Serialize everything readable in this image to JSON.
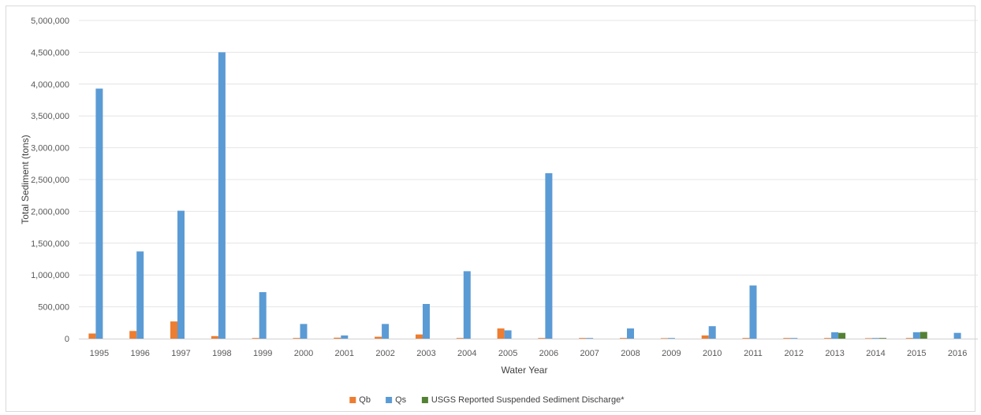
{
  "chart_data": {
    "type": "bar",
    "title": "",
    "xlabel": "Water Year",
    "ylabel": "Total Sediment (tons)",
    "ylim": [
      0,
      5000000
    ],
    "yticks": [
      "0",
      "500,000",
      "1,000,000",
      "1,500,000",
      "2,000,000",
      "2,500,000",
      "3,000,000",
      "3,500,000",
      "4,000,000",
      "4,500,000",
      "5,000,000"
    ],
    "ytick_values": [
      0,
      500000,
      1000000,
      1500000,
      2000000,
      2500000,
      3000000,
      3500000,
      4000000,
      4500000,
      5000000
    ],
    "grid": true,
    "legend": "bottom",
    "categories": [
      "1995",
      "1996",
      "1997",
      "1998",
      "1999",
      "2000",
      "2001",
      "2002",
      "2003",
      "2004",
      "2005",
      "2006",
      "2007",
      "2008",
      "2009",
      "2010",
      "2011",
      "2012",
      "2013",
      "2014",
      "2015",
      "2016"
    ],
    "series": [
      {
        "name": "Qb",
        "color": "#ed7d31",
        "values": [
          80000,
          120000,
          270000,
          40000,
          10000,
          10000,
          15000,
          30000,
          65000,
          10000,
          160000,
          10000,
          10000,
          10000,
          8000,
          50000,
          10000,
          10000,
          10000,
          8000,
          10000,
          null
        ]
      },
      {
        "name": "Qs",
        "color": "#5b9bd5",
        "values": [
          3930000,
          1370000,
          2010000,
          4500000,
          730000,
          230000,
          50000,
          230000,
          545000,
          1060000,
          130000,
          2600000,
          10000,
          160000,
          10000,
          195000,
          835000,
          10000,
          100000,
          10000,
          100000,
          90000
        ]
      },
      {
        "name": "USGS Reported Suspended Sediment Discharge*",
        "color": "#548235",
        "values": [
          null,
          null,
          null,
          null,
          null,
          null,
          null,
          null,
          null,
          null,
          null,
          null,
          null,
          null,
          null,
          null,
          null,
          null,
          90000,
          10000,
          105000,
          null
        ]
      }
    ]
  }
}
